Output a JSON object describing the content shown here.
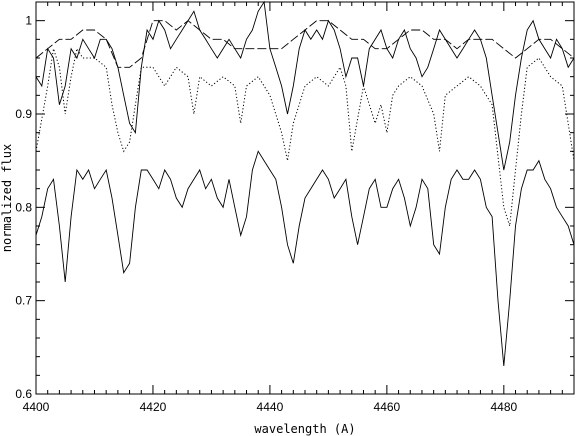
{
  "chart_data": {
    "type": "line",
    "title": "",
    "xlabel": "wavelength (A)",
    "ylabel": "normalized flux",
    "xlim": [
      4400,
      4492
    ],
    "ylim": [
      0.6,
      1.02
    ],
    "grid": false,
    "legend": "none",
    "xticks": [
      4400,
      4420,
      4440,
      4460,
      4480
    ],
    "yticks": [
      0.6,
      0.7,
      0.8,
      0.9,
      1
    ],
    "xtick_labels": [
      "4400",
      "4420",
      "4440",
      "4460",
      "4480"
    ],
    "ytick_labels": [
      "0.6",
      "0.7",
      "0.8",
      "0.9",
      "1"
    ],
    "line_color": "#000000",
    "series": [
      {
        "style": "solid",
        "x": [
          4400,
          4401,
          4402,
          4403,
          4404,
          4405,
          4406,
          4407,
          4408,
          4409,
          4410,
          4411,
          4412,
          4413,
          4414,
          4415,
          4416,
          4417,
          4418,
          4419,
          4420,
          4421,
          4422,
          4423,
          4424,
          4425,
          4426,
          4427,
          4428,
          4429,
          4430,
          4431,
          4432,
          4433,
          4434,
          4435,
          4436,
          4437,
          4438,
          4439,
          4440,
          4441,
          4442,
          4443,
          4444,
          4445,
          4446,
          4447,
          4448,
          4449,
          4450,
          4451,
          4452,
          4453,
          4454,
          4455,
          4456,
          4457,
          4458,
          4459,
          4460,
          4461,
          4462,
          4463,
          4464,
          4465,
          4466,
          4467,
          4468,
          4469,
          4470,
          4471,
          4472,
          4473,
          4474,
          4475,
          4476,
          4477,
          4478,
          4479,
          4480,
          4481,
          4482,
          4483,
          4484,
          4485,
          4486,
          4487,
          4488,
          4489,
          4490,
          4491,
          4492
        ],
        "y": [
          0.94,
          0.93,
          0.97,
          0.96,
          0.91,
          0.93,
          0.97,
          0.96,
          0.98,
          0.97,
          0.96,
          0.98,
          0.98,
          0.97,
          0.95,
          0.92,
          0.89,
          0.88,
          0.95,
          0.99,
          0.98,
          1.0,
          0.99,
          0.97,
          0.98,
          0.99,
          1.0,
          1.01,
          0.99,
          0.98,
          0.97,
          0.96,
          0.97,
          0.98,
          0.97,
          0.96,
          0.98,
          0.99,
          1.01,
          1.02,
          0.97,
          0.95,
          0.93,
          0.9,
          0.93,
          0.97,
          0.99,
          0.98,
          0.99,
          0.98,
          1.0,
          0.99,
          0.97,
          0.94,
          0.96,
          0.96,
          0.93,
          0.97,
          0.98,
          0.99,
          0.97,
          0.96,
          0.98,
          0.99,
          0.97,
          0.96,
          0.94,
          0.95,
          0.97,
          0.99,
          0.98,
          0.97,
          0.96,
          0.97,
          0.98,
          0.99,
          0.98,
          0.96,
          0.92,
          0.88,
          0.84,
          0.87,
          0.92,
          0.96,
          0.99,
          1.0,
          0.98,
          0.97,
          0.96,
          0.98,
          0.97,
          0.95,
          0.96
        ]
      },
      {
        "style": "dashed",
        "x": [
          4400,
          4402,
          4404,
          4406,
          4408,
          4410,
          4412,
          4414,
          4416,
          4418,
          4420,
          4422,
          4424,
          4426,
          4428,
          4430,
          4432,
          4434,
          4436,
          4438,
          4440,
          4442,
          4444,
          4446,
          4448,
          4450,
          4452,
          4454,
          4456,
          4458,
          4460,
          4462,
          4464,
          4466,
          4468,
          4470,
          4472,
          4474,
          4476,
          4478,
          4480,
          4482,
          4484,
          4486,
          4488,
          4490,
          4492
        ],
        "y": [
          0.96,
          0.97,
          0.98,
          0.98,
          0.99,
          0.99,
          0.98,
          0.95,
          0.95,
          0.96,
          1.0,
          1.0,
          0.99,
          1.0,
          0.99,
          0.98,
          0.98,
          0.97,
          0.97,
          0.97,
          0.97,
          0.97,
          0.98,
          0.99,
          1.0,
          1.0,
          0.99,
          0.98,
          0.98,
          0.97,
          0.97,
          0.98,
          0.99,
          0.99,
          0.98,
          0.98,
          0.97,
          0.98,
          0.98,
          0.98,
          0.97,
          0.96,
          0.97,
          0.98,
          0.98,
          0.97,
          0.96
        ]
      },
      {
        "style": "dotted",
        "x": [
          4400,
          4402,
          4403,
          4404,
          4405,
          4406,
          4407,
          4408,
          4410,
          4412,
          4413,
          4414,
          4415,
          4416,
          4417,
          4418,
          4420,
          4422,
          4424,
          4426,
          4427,
          4428,
          4430,
          4432,
          4434,
          4435,
          4436,
          4438,
          4440,
          4442,
          4443,
          4444,
          4446,
          4448,
          4450,
          4452,
          4453,
          4454,
          4456,
          4458,
          4459,
          4460,
          4461,
          4462,
          4464,
          4466,
          4468,
          4469,
          4470,
          4472,
          4474,
          4476,
          4478,
          4480,
          4481,
          4482,
          4483,
          4484,
          4486,
          4488,
          4490,
          4492
        ],
        "y": [
          0.86,
          0.93,
          0.97,
          0.95,
          0.9,
          0.94,
          0.97,
          0.96,
          0.96,
          0.95,
          0.91,
          0.88,
          0.86,
          0.87,
          0.91,
          0.95,
          0.95,
          0.93,
          0.95,
          0.94,
          0.9,
          0.94,
          0.93,
          0.94,
          0.93,
          0.89,
          0.93,
          0.94,
          0.92,
          0.88,
          0.85,
          0.89,
          0.93,
          0.94,
          0.93,
          0.95,
          0.93,
          0.86,
          0.93,
          0.89,
          0.91,
          0.88,
          0.92,
          0.93,
          0.94,
          0.93,
          0.9,
          0.86,
          0.92,
          0.93,
          0.94,
          0.93,
          0.91,
          0.8,
          0.78,
          0.84,
          0.9,
          0.95,
          0.96,
          0.94,
          0.93,
          0.85
        ]
      },
      {
        "style": "solid",
        "x": [
          4400,
          4401,
          4402,
          4403,
          4404,
          4405,
          4406,
          4407,
          4408,
          4409,
          4410,
          4411,
          4412,
          4413,
          4414,
          4415,
          4416,
          4417,
          4418,
          4419,
          4420,
          4421,
          4422,
          4423,
          4424,
          4425,
          4426,
          4427,
          4428,
          4429,
          4430,
          4431,
          4432,
          4433,
          4434,
          4435,
          4436,
          4437,
          4438,
          4439,
          4440,
          4441,
          4442,
          4443,
          4444,
          4445,
          4446,
          4447,
          4448,
          4449,
          4450,
          4451,
          4452,
          4453,
          4454,
          4455,
          4456,
          4457,
          4458,
          4459,
          4460,
          4461,
          4462,
          4463,
          4464,
          4465,
          4466,
          4467,
          4468,
          4469,
          4470,
          4471,
          4472,
          4473,
          4474,
          4475,
          4476,
          4477,
          4478,
          4479,
          4480,
          4481,
          4482,
          4483,
          4484,
          4485,
          4486,
          4487,
          4488,
          4489,
          4490,
          4491,
          4492
        ],
        "y": [
          0.77,
          0.79,
          0.82,
          0.83,
          0.78,
          0.72,
          0.79,
          0.84,
          0.83,
          0.84,
          0.82,
          0.83,
          0.84,
          0.81,
          0.77,
          0.73,
          0.74,
          0.8,
          0.84,
          0.84,
          0.83,
          0.82,
          0.84,
          0.83,
          0.81,
          0.8,
          0.82,
          0.83,
          0.84,
          0.82,
          0.83,
          0.81,
          0.8,
          0.83,
          0.8,
          0.77,
          0.79,
          0.84,
          0.86,
          0.85,
          0.84,
          0.83,
          0.8,
          0.76,
          0.74,
          0.78,
          0.81,
          0.82,
          0.83,
          0.84,
          0.83,
          0.81,
          0.82,
          0.83,
          0.79,
          0.76,
          0.79,
          0.82,
          0.83,
          0.8,
          0.8,
          0.82,
          0.83,
          0.81,
          0.78,
          0.8,
          0.83,
          0.82,
          0.76,
          0.75,
          0.8,
          0.83,
          0.84,
          0.83,
          0.83,
          0.84,
          0.83,
          0.8,
          0.79,
          0.7,
          0.63,
          0.7,
          0.78,
          0.82,
          0.84,
          0.84,
          0.85,
          0.83,
          0.82,
          0.8,
          0.79,
          0.78,
          0.76
        ]
      }
    ]
  }
}
